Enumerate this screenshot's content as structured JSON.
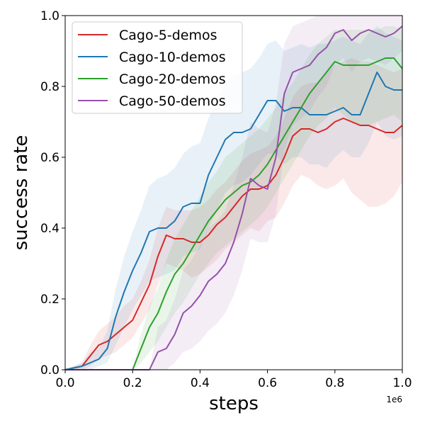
{
  "chart_data": {
    "type": "line",
    "xlabel": "steps",
    "ylabel": "success rate",
    "x_offset_label": "1e6",
    "xlim": [
      0.0,
      1.0
    ],
    "ylim": [
      0.0,
      1.0
    ],
    "xticks": [
      "0.0",
      "0.2",
      "0.4",
      "0.6",
      "0.8",
      "1.0"
    ],
    "xtick_values": [
      0.0,
      0.2,
      0.4,
      0.6,
      0.8,
      1.0
    ],
    "yticks": [
      "0.0",
      "0.2",
      "0.4",
      "0.6",
      "0.8",
      "1.0"
    ],
    "ytick_values": [
      0.0,
      0.2,
      0.4,
      0.6,
      0.8,
      1.0
    ],
    "legend_position": "top-left",
    "x": [
      0.0,
      0.025,
      0.05,
      0.075,
      0.1,
      0.125,
      0.15,
      0.175,
      0.2,
      0.225,
      0.25,
      0.275,
      0.3,
      0.325,
      0.35,
      0.375,
      0.4,
      0.425,
      0.45,
      0.475,
      0.5,
      0.525,
      0.55,
      0.575,
      0.6,
      0.625,
      0.65,
      0.675,
      0.7,
      0.725,
      0.75,
      0.775,
      0.8,
      0.825,
      0.85,
      0.875,
      0.9,
      0.925,
      0.95,
      0.975,
      1.0
    ],
    "series": [
      {
        "name": "Cago-5-demos",
        "color": "#d62728",
        "values": [
          0.0,
          0.005,
          0.01,
          0.04,
          0.07,
          0.08,
          0.1,
          0.12,
          0.14,
          0.19,
          0.24,
          0.32,
          0.38,
          0.37,
          0.37,
          0.36,
          0.36,
          0.38,
          0.41,
          0.43,
          0.46,
          0.49,
          0.51,
          0.51,
          0.52,
          0.55,
          0.6,
          0.66,
          0.68,
          0.68,
          0.67,
          0.68,
          0.7,
          0.71,
          0.7,
          0.69,
          0.69,
          0.68,
          0.67,
          0.67,
          0.69
        ],
        "lower": [
          0.0,
          0.0,
          0.0,
          0.01,
          0.03,
          0.04,
          0.05,
          0.07,
          0.09,
          0.13,
          0.17,
          0.24,
          0.3,
          0.29,
          0.28,
          0.26,
          0.27,
          0.29,
          0.31,
          0.34,
          0.36,
          0.38,
          0.4,
          0.39,
          0.42,
          0.43,
          0.47,
          0.52,
          0.55,
          0.54,
          0.52,
          0.51,
          0.52,
          0.54,
          0.5,
          0.48,
          0.46,
          0.46,
          0.47,
          0.49,
          0.53
        ],
        "upper": [
          0.0,
          0.01,
          0.02,
          0.07,
          0.11,
          0.13,
          0.15,
          0.18,
          0.2,
          0.25,
          0.31,
          0.4,
          0.46,
          0.45,
          0.45,
          0.45,
          0.46,
          0.48,
          0.51,
          0.53,
          0.56,
          0.59,
          0.61,
          0.62,
          0.63,
          0.66,
          0.71,
          0.77,
          0.8,
          0.81,
          0.81,
          0.84,
          0.86,
          0.87,
          0.88,
          0.87,
          0.87,
          0.86,
          0.85,
          0.84,
          0.85
        ]
      },
      {
        "name": "Cago-10-demos",
        "color": "#1f77b4",
        "values": [
          0.0,
          0.005,
          0.01,
          0.02,
          0.03,
          0.06,
          0.15,
          0.22,
          0.28,
          0.33,
          0.39,
          0.4,
          0.4,
          0.42,
          0.46,
          0.47,
          0.47,
          0.55,
          0.6,
          0.65,
          0.67,
          0.67,
          0.68,
          0.72,
          0.76,
          0.76,
          0.73,
          0.74,
          0.74,
          0.72,
          0.72,
          0.72,
          0.73,
          0.74,
          0.72,
          0.72,
          0.78,
          0.84,
          0.8,
          0.79,
          0.79
        ],
        "lower": [
          0.0,
          0.0,
          0.0,
          0.0,
          0.01,
          0.02,
          0.07,
          0.12,
          0.17,
          0.21,
          0.25,
          0.26,
          0.27,
          0.28,
          0.32,
          0.33,
          0.34,
          0.4,
          0.45,
          0.5,
          0.52,
          0.53,
          0.55,
          0.58,
          0.61,
          0.61,
          0.58,
          0.6,
          0.6,
          0.58,
          0.58,
          0.57,
          0.6,
          0.62,
          0.6,
          0.6,
          0.64,
          0.7,
          0.66,
          0.65,
          0.66
        ],
        "upper": [
          0.0,
          0.01,
          0.02,
          0.05,
          0.06,
          0.11,
          0.23,
          0.32,
          0.39,
          0.45,
          0.52,
          0.54,
          0.55,
          0.57,
          0.61,
          0.63,
          0.64,
          0.71,
          0.76,
          0.81,
          0.83,
          0.84,
          0.85,
          0.88,
          0.92,
          0.93,
          0.9,
          0.91,
          0.92,
          0.91,
          0.92,
          0.92,
          0.93,
          0.94,
          0.93,
          0.92,
          0.95,
          0.97,
          0.95,
          0.94,
          0.93
        ]
      },
      {
        "name": "Cago-20-demos",
        "color": "#2ca02c",
        "values": [
          0.0,
          0.0,
          0.0,
          0.0,
          0.0,
          0.0,
          0.0,
          0.0,
          0.0,
          0.06,
          0.12,
          0.16,
          0.22,
          0.27,
          0.3,
          0.34,
          0.38,
          0.42,
          0.45,
          0.48,
          0.5,
          0.52,
          0.53,
          0.55,
          0.58,
          0.62,
          0.66,
          0.7,
          0.74,
          0.78,
          0.81,
          0.84,
          0.87,
          0.86,
          0.86,
          0.86,
          0.86,
          0.87,
          0.88,
          0.88,
          0.85
        ],
        "lower": [
          0.0,
          0.0,
          0.0,
          0.0,
          0.0,
          0.0,
          0.0,
          0.0,
          0.0,
          0.02,
          0.05,
          0.08,
          0.12,
          0.16,
          0.19,
          0.23,
          0.27,
          0.3,
          0.33,
          0.35,
          0.37,
          0.39,
          0.41,
          0.43,
          0.46,
          0.5,
          0.54,
          0.58,
          0.62,
          0.66,
          0.69,
          0.71,
          0.74,
          0.72,
          0.7,
          0.69,
          0.69,
          0.7,
          0.71,
          0.72,
          0.7
        ],
        "upper": [
          0.0,
          0.0,
          0.0,
          0.0,
          0.0,
          0.0,
          0.0,
          0.0,
          0.0,
          0.1,
          0.18,
          0.23,
          0.31,
          0.37,
          0.41,
          0.45,
          0.49,
          0.53,
          0.56,
          0.6,
          0.62,
          0.64,
          0.66,
          0.68,
          0.71,
          0.74,
          0.78,
          0.81,
          0.85,
          0.89,
          0.92,
          0.94,
          0.96,
          0.96,
          0.96,
          0.96,
          0.96,
          0.96,
          0.97,
          0.97,
          0.96
        ]
      },
      {
        "name": "Cago-50-demos",
        "color": "#9451a8",
        "values": [
          0.0,
          0.0,
          0.0,
          0.0,
          0.0,
          0.0,
          0.0,
          0.0,
          0.0,
          0.0,
          0.0,
          0.05,
          0.06,
          0.1,
          0.16,
          0.18,
          0.21,
          0.25,
          0.27,
          0.3,
          0.36,
          0.44,
          0.54,
          0.52,
          0.51,
          0.6,
          0.78,
          0.84,
          0.85,
          0.86,
          0.89,
          0.91,
          0.95,
          0.96,
          0.93,
          0.95,
          0.96,
          0.95,
          0.94,
          0.95,
          0.97
        ],
        "lower": [
          0.0,
          0.0,
          0.0,
          0.0,
          0.0,
          0.0,
          0.0,
          0.0,
          0.0,
          0.0,
          0.0,
          0.0,
          0.0,
          0.02,
          0.05,
          0.06,
          0.08,
          0.11,
          0.13,
          0.16,
          0.21,
          0.28,
          0.37,
          0.36,
          0.36,
          0.44,
          0.62,
          0.69,
          0.71,
          0.73,
          0.77,
          0.8,
          0.86,
          0.88,
          0.84,
          0.87,
          0.88,
          0.87,
          0.86,
          0.88,
          0.9
        ],
        "upper": [
          0.0,
          0.0,
          0.0,
          0.0,
          0.0,
          0.0,
          0.0,
          0.0,
          0.0,
          0.0,
          0.0,
          0.12,
          0.14,
          0.2,
          0.28,
          0.31,
          0.35,
          0.4,
          0.42,
          0.45,
          0.52,
          0.6,
          0.7,
          0.68,
          0.67,
          0.75,
          0.92,
          0.97,
          0.98,
          0.99,
          1.0,
          1.0,
          1.0,
          1.0,
          1.0,
          1.0,
          1.0,
          1.0,
          1.0,
          1.0,
          1.0
        ]
      }
    ]
  }
}
